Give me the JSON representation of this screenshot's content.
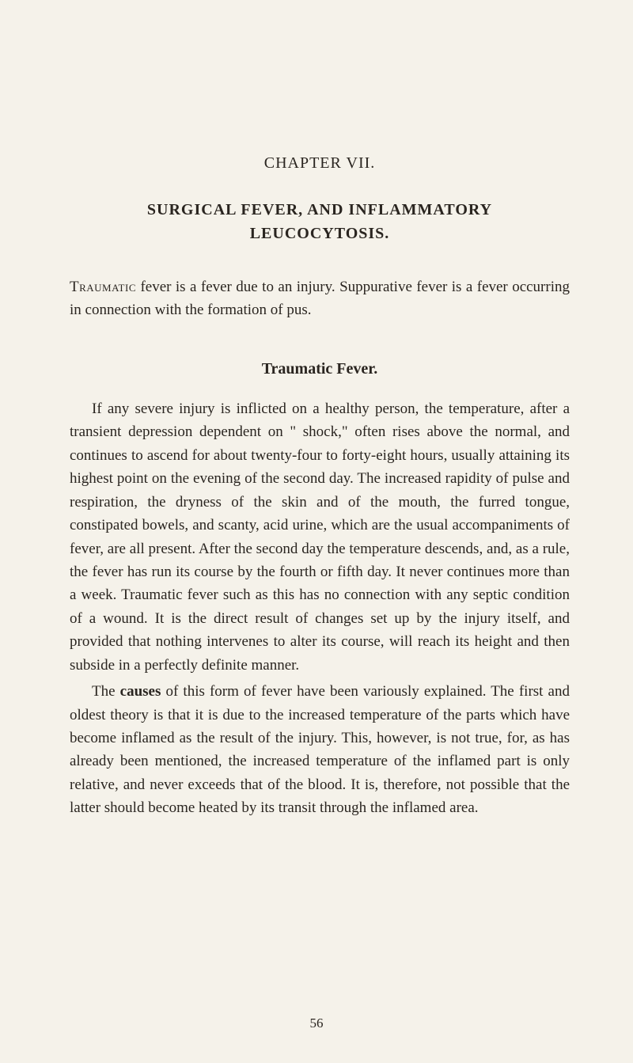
{
  "chapter": {
    "number": "CHAPTER VII.",
    "title_line1": "SURGICAL FEVER, AND INFLAMMATORY",
    "title_line2": "LEUCOCYTOSIS."
  },
  "intro": {
    "smallcaps_word": "Traumatic",
    "rest": " fever is a fever due to an injury. Suppurative fever is a fever occurring in connection with the formation of pus."
  },
  "section": {
    "title": "Traumatic Fever."
  },
  "para1": "If any severe injury is inflicted on a healthy person, the tem­perature, after a transient depression dependent on \" shock,\" often rises above the normal, and continues to ascend for about twenty-four to forty-eight hours, usually attaining its highest point on the evening of the second day. The increased rapidity of pulse and respiration, the dryness of the skin and of the mouth, the furred tongue, constipated bowels, and scanty, acid urine, which are the usual accompaniments of fever, are all present. After the second day the temperature descends, and, as a rule, the fever has run its course by the fourth or fifth day. It never continues more than a week. Traumatic fever such as this has no connection with any septic condition of a wound. It is the direct result of changes set up by the injury itself, and provided that nothing intervenes to alter its course, will reach its height and then subside in a perfectly definite manner.",
  "para2": {
    "pre": "The ",
    "bold": "causes",
    "post": " of this form of fever have been variously explained. The first and oldest theory is that it is due to the increased tem­perature of the parts which have become inflamed as the result of the injury. This, however, is not true, for, as has already been mentioned, the increased temperature of the inflamed part is only relative, and never exceeds that of the blood. It is, therefore, not possible that the latter should become heated by its transit through the inflamed area."
  },
  "page_number": "56",
  "colors": {
    "background": "#f5f2ea",
    "text": "#2a2520"
  },
  "typography": {
    "body_fontsize": 19,
    "heading_fontsize": 20,
    "line_height": 1.55,
    "text_indent": 28
  }
}
